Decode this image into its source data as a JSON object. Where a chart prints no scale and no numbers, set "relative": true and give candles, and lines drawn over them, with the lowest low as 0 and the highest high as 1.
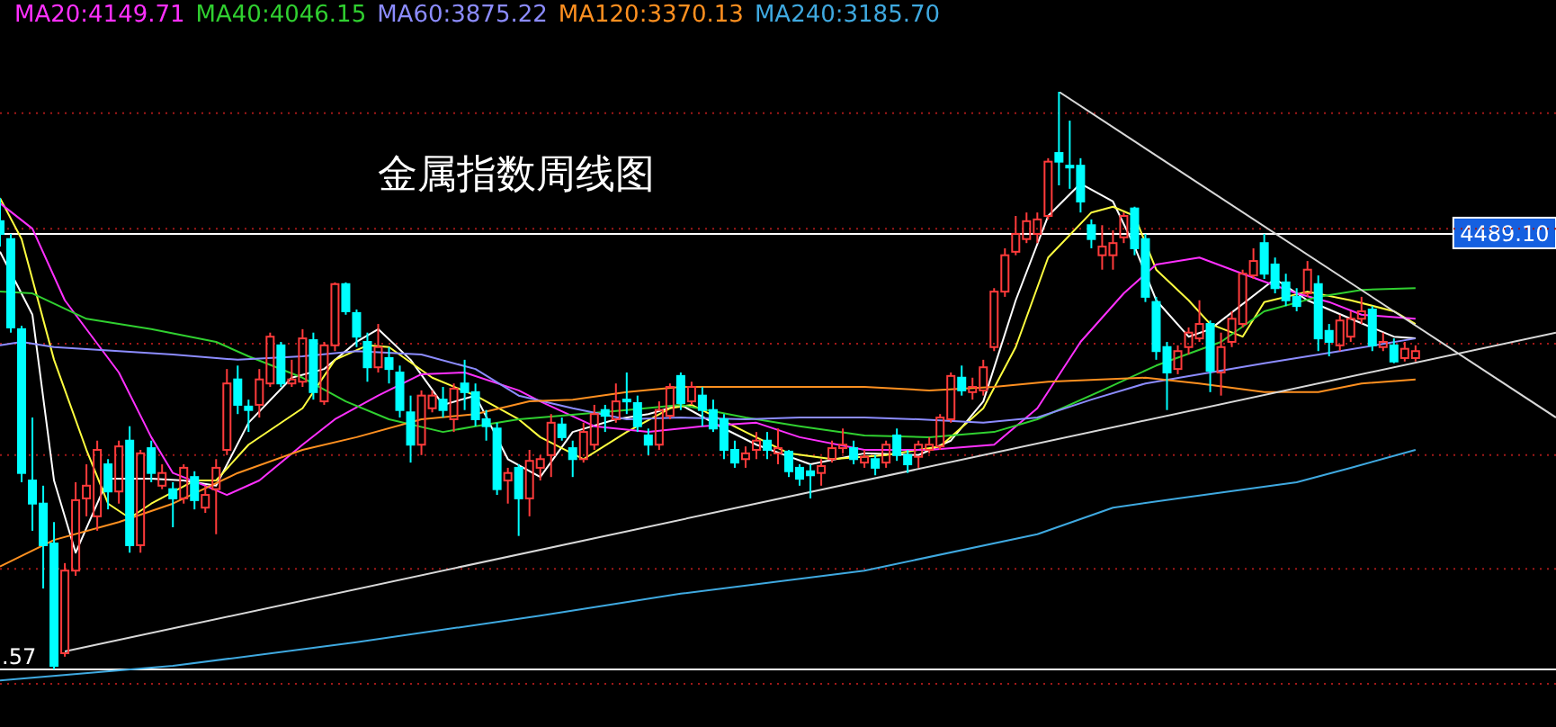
{
  "chart_data": {
    "type": "candlestick",
    "title": "金属指数周线图",
    "relative": true,
    "legend": "top left",
    "categories": [
      null,
      null,
      null,
      null,
      null,
      null,
      null,
      null,
      null,
      null,
      null,
      null,
      null,
      null,
      null,
      null,
      null,
      null,
      null,
      null,
      null,
      null,
      null,
      null,
      null,
      null,
      null,
      null,
      null,
      null,
      null,
      null,
      null,
      null,
      null,
      null,
      null,
      null,
      null,
      null,
      null,
      null,
      null,
      null,
      null,
      null,
      null,
      null,
      null,
      null,
      null,
      null,
      null,
      null,
      null,
      null,
      null,
      null,
      null,
      null,
      null,
      null,
      null,
      null,
      null,
      null,
      null,
      null,
      null,
      null,
      null,
      null,
      null,
      null,
      null,
      null,
      null,
      null,
      null,
      null,
      null,
      null,
      null,
      null,
      null,
      null,
      null,
      null,
      null,
      null,
      null,
      null,
      null,
      null,
      null,
      null,
      null,
      null,
      null,
      null,
      null,
      null,
      null,
      null,
      null,
      null,
      null,
      null,
      null,
      null,
      null,
      null,
      null,
      null,
      null,
      null,
      null,
      null,
      null,
      null,
      null,
      null,
      null,
      null,
      null,
      null,
      null,
      null,
      null,
      null,
      null,
      null,
      null,
      null,
      null,
      null,
      null,
      null,
      null,
      null,
      null,
      null,
      null,
      null,
      null
    ],
    "ohlc": [
      [
        0.776,
        0.816,
        0.732,
        0.754
      ],
      [
        0.745,
        0.754,
        0.583,
        0.592
      ],
      [
        0.589,
        0.595,
        0.324,
        0.34
      ],
      [
        0.327,
        0.436,
        0.24,
        0.287
      ],
      [
        0.287,
        0.318,
        0.14,
        0.215
      ],
      [
        0.218,
        0.255,
        0,
        0.006
      ],
      [
        0.028,
        0.184,
        0.022,
        0.171
      ],
      [
        0.171,
        0.324,
        0.162,
        0.293
      ],
      [
        0.296,
        0.355,
        0.265,
        0.318
      ],
      [
        0.265,
        0.396,
        0.24,
        0.38
      ],
      [
        0.355,
        0.364,
        0.277,
        0.308
      ],
      [
        0.308,
        0.396,
        0.287,
        0.386
      ],
      [
        0.396,
        0.421,
        0.202,
        0.215
      ],
      [
        0.215,
        0.38,
        0.202,
        0.374
      ],
      [
        0.383,
        0.396,
        0.324,
        0.34
      ],
      [
        0.318,
        0.355,
        0.312,
        0.34
      ],
      [
        0.312,
        0.324,
        0.246,
        0.296
      ],
      [
        0.296,
        0.355,
        0.287,
        0.349
      ],
      [
        0.333,
        0.343,
        0.277,
        0.293
      ],
      [
        0.28,
        0.318,
        0.271,
        0.302
      ],
      [
        0.312,
        0.364,
        0.234,
        0.349
      ],
      [
        0.38,
        0.52,
        0.371,
        0.495
      ],
      [
        0.502,
        0.526,
        0.442,
        0.458
      ],
      [
        0.455,
        0.467,
        0.411,
        0.449
      ],
      [
        0.458,
        0.52,
        0.436,
        0.502
      ],
      [
        0.495,
        0.583,
        0.489,
        0.576
      ],
      [
        0.561,
        0.567,
        0.489,
        0.495
      ],
      [
        0.495,
        0.536,
        0.489,
        0.502
      ],
      [
        0.498,
        0.589,
        0.489,
        0.573
      ],
      [
        0.57,
        0.583,
        0.467,
        0.48
      ],
      [
        0.464,
        0.567,
        0.458,
        0.561
      ],
      [
        0.561,
        0.67,
        0.551,
        0.667
      ],
      [
        0.667,
        0.67,
        0.614,
        0.62
      ],
      [
        0.617,
        0.623,
        0.558,
        0.576
      ],
      [
        0.567,
        0.583,
        0.498,
        0.523
      ],
      [
        0.523,
        0.598,
        0.514,
        0.558
      ],
      [
        0.539,
        0.558,
        0.495,
        0.52
      ],
      [
        0.514,
        0.526,
        0.436,
        0.449
      ],
      [
        0.445,
        0.474,
        0.358,
        0.389
      ],
      [
        0.389,
        0.483,
        0.371,
        0.474
      ],
      [
        0.452,
        0.483,
        0.445,
        0.474
      ],
      [
        0.467,
        0.489,
        0.436,
        0.449
      ],
      [
        0.433,
        0.495,
        0.411,
        0.486
      ],
      [
        0.495,
        0.536,
        0.449,
        0.48
      ],
      [
        0.48,
        0.495,
        0.421,
        0.433
      ],
      [
        0.433,
        0.449,
        0.396,
        0.421
      ],
      [
        0.417,
        0.427,
        0.302,
        0.312
      ],
      [
        0.327,
        0.349,
        0.287,
        0.34
      ],
      [
        0.349,
        0.355,
        0.231,
        0.296
      ],
      [
        0.296,
        0.38,
        0.265,
        0.361
      ],
      [
        0.349,
        0.371,
        0.327,
        0.364
      ],
      [
        0.371,
        0.442,
        0.333,
        0.427
      ],
      [
        0.424,
        0.436,
        0.396,
        0.402
      ],
      [
        0.383,
        0.396,
        0.333,
        0.364
      ],
      [
        0.364,
        0.427,
        0.358,
        0.411
      ],
      [
        0.389,
        0.458,
        0.38,
        0.442
      ],
      [
        0.449,
        0.458,
        0.411,
        0.439
      ],
      [
        0.433,
        0.495,
        0.427,
        0.464
      ],
      [
        0.467,
        0.514,
        0.442,
        0.464
      ],
      [
        0.461,
        0.474,
        0.411,
        0.421
      ],
      [
        0.405,
        0.417,
        0.371,
        0.389
      ],
      [
        0.389,
        0.464,
        0.38,
        0.449
      ],
      [
        0.439,
        0.495,
        0.433,
        0.489
      ],
      [
        0.508,
        0.514,
        0.449,
        0.461
      ],
      [
        0.464,
        0.498,
        0.458,
        0.489
      ],
      [
        0.474,
        0.489,
        0.421,
        0.449
      ],
      [
        0.449,
        0.467,
        0.411,
        0.417
      ],
      [
        0.433,
        0.442,
        0.364,
        0.38
      ],
      [
        0.38,
        0.396,
        0.349,
        0.358
      ],
      [
        0.364,
        0.386,
        0.349,
        0.374
      ],
      [
        0.38,
        0.411,
        0.364,
        0.396
      ],
      [
        0.396,
        0.411,
        0.364,
        0.38
      ],
      [
        0.374,
        0.417,
        0.355,
        0.383
      ],
      [
        0.377,
        0.38,
        0.333,
        0.343
      ],
      [
        0.349,
        0.355,
        0.318,
        0.33
      ],
      [
        0.343,
        0.355,
        0.296,
        0.336
      ],
      [
        0.34,
        0.364,
        0.318,
        0.352
      ],
      [
        0.364,
        0.396,
        0.358,
        0.383
      ],
      [
        0.383,
        0.417,
        0.374,
        0.389
      ],
      [
        0.383,
        0.396,
        0.355,
        0.364
      ],
      [
        0.358,
        0.38,
        0.349,
        0.368
      ],
      [
        0.364,
        0.371,
        0.336,
        0.349
      ],
      [
        0.358,
        0.396,
        0.349,
        0.389
      ],
      [
        0.405,
        0.417,
        0.361,
        0.371
      ],
      [
        0.371,
        0.38,
        0.34,
        0.355
      ],
      [
        0.368,
        0.396,
        0.349,
        0.389
      ],
      [
        0.38,
        0.402,
        0.374,
        0.389
      ],
      [
        0.386,
        0.442,
        0.38,
        0.436
      ],
      [
        0.433,
        0.514,
        0.427,
        0.508
      ],
      [
        0.505,
        0.526,
        0.474,
        0.483
      ],
      [
        0.48,
        0.505,
        0.467,
        0.489
      ],
      [
        0.483,
        0.536,
        0.474,
        0.523
      ],
      [
        0.558,
        0.66,
        0.551,
        0.654
      ],
      [
        0.654,
        0.729,
        0.645,
        0.717
      ],
      [
        0.723,
        0.785,
        0.717,
        0.754
      ],
      [
        0.745,
        0.791,
        0.738,
        0.776
      ],
      [
        0.754,
        0.791,
        0.738,
        0.779
      ],
      [
        0.785,
        0.885,
        0.779,
        0.879
      ],
      [
        0.894,
        1,
        0.838,
        0.879
      ],
      [
        0.872,
        0.95,
        0.832,
        0.869
      ],
      [
        0.872,
        0.885,
        0.791,
        0.81
      ],
      [
        0.769,
        0.779,
        0.729,
        0.745
      ],
      [
        0.717,
        0.769,
        0.692,
        0.732
      ],
      [
        0.717,
        0.76,
        0.692,
        0.738
      ],
      [
        0.748,
        0.791,
        0.738,
        0.785
      ],
      [
        0.798,
        0.801,
        0.717,
        0.729
      ],
      [
        0.745,
        0.754,
        0.636,
        0.645
      ],
      [
        0.636,
        0.645,
        0.536,
        0.551
      ],
      [
        0.558,
        0.567,
        0.449,
        0.514
      ],
      [
        0.52,
        0.561,
        0.511,
        0.551
      ],
      [
        0.558,
        0.592,
        0.545,
        0.583
      ],
      [
        0.573,
        0.639,
        0.567,
        0.598
      ],
      [
        0.598,
        0.604,
        0.48,
        0.517
      ],
      [
        0.514,
        0.583,
        0.474,
        0.558
      ],
      [
        0.567,
        0.62,
        0.558,
        0.607
      ],
      [
        0.598,
        0.692,
        0.592,
        0.685
      ],
      [
        0.682,
        0.729,
        0.676,
        0.707
      ],
      [
        0.738,
        0.754,
        0.676,
        0.685
      ],
      [
        0.701,
        0.713,
        0.651,
        0.66
      ],
      [
        0.67,
        0.685,
        0.629,
        0.639
      ],
      [
        0.645,
        0.66,
        0.62,
        0.629
      ],
      [
        0.651,
        0.707,
        0.645,
        0.692
      ],
      [
        0.667,
        0.682,
        0.551,
        0.573
      ],
      [
        0.586,
        0.598,
        0.542,
        0.567
      ],
      [
        0.561,
        0.614,
        0.551,
        0.604
      ],
      [
        0.576,
        0.62,
        0.567,
        0.607
      ],
      [
        0.607,
        0.645,
        0.598,
        0.62
      ],
      [
        0.623,
        0.629,
        0.551,
        0.561
      ],
      [
        0.558,
        0.583,
        0.551,
        0.567
      ],
      [
        0.561,
        0.573,
        0.53,
        0.533
      ],
      [
        0.539,
        0.567,
        0.533,
        0.555
      ],
      [
        0.539,
        0.561,
        0.533,
        0.551
      ],
      null,
      null,
      null,
      null,
      null,
      null,
      null,
      null,
      null,
      null,
      null,
      null,
      null
    ],
    "colors": [
      "#00ffff",
      "#00ffff",
      "#00ffff",
      "#00ffff",
      "#00ffff",
      "#00ffff",
      "#ff3b3b",
      "#ff3b3b",
      "#ff3b3b",
      "#ff3b3b",
      "#00ffff",
      "#ff3b3b",
      "#00ffff",
      "#ff3b3b",
      "#00ffff",
      "#ff3b3b",
      "#00ffff",
      "#ff3b3b",
      "#00ffff",
      "#ff3b3b",
      "#ff3b3b",
      "#ff3b3b",
      "#00ffff",
      "#00ffff",
      "#ff3b3b",
      "#ff3b3b",
      "#00ffff",
      "#ff3b3b",
      "#ff3b3b",
      "#00ffff",
      "#ff3b3b",
      "#ff3b3b",
      "#00ffff",
      "#00ffff",
      "#00ffff",
      "#ff3b3b",
      "#00ffff",
      "#00ffff",
      "#00ffff",
      "#ff3b3b",
      "#ff3b3b",
      "#00ffff",
      "#ff3b3b",
      "#00ffff",
      "#00ffff",
      "#00ffff",
      "#00ffff",
      "#ff3b3b",
      "#00ffff",
      "#ff3b3b",
      "#ff3b3b",
      "#ff3b3b",
      "#00ffff",
      "#00ffff",
      "#ff3b3b",
      "#ff3b3b",
      "#00ffff",
      "#ff3b3b",
      "#00ffff",
      "#00ffff",
      "#00ffff",
      "#ff3b3b",
      "#ff3b3b",
      "#00ffff",
      "#ff3b3b",
      "#00ffff",
      "#00ffff",
      "#00ffff",
      "#00ffff",
      "#ff3b3b",
      "#ff3b3b",
      "#00ffff",
      "#ff3b3b",
      "#00ffff",
      "#00ffff",
      "#00ffff",
      "#ff3b3b",
      "#ff3b3b",
      "#ff3b3b",
      "#00ffff",
      "#ff3b3b",
      "#00ffff",
      "#ff3b3b",
      "#00ffff",
      "#00ffff",
      "#ff3b3b",
      "#ff3b3b",
      "#ff3b3b",
      "#ff3b3b",
      "#00ffff",
      "#ff3b3b",
      "#ff3b3b",
      "#ff3b3b",
      "#ff3b3b",
      "#ff3b3b",
      "#ff3b3b",
      "#ff3b3b",
      "#ff3b3b",
      "#00ffff",
      "#00ffff",
      "#00ffff",
      "#00ffff",
      "#ff3b3b",
      "#ff3b3b",
      "#ff3b3b",
      "#00ffff",
      "#00ffff",
      "#00ffff",
      "#00ffff",
      "#ff3b3b",
      "#ff3b3b",
      "#ff3b3b",
      "#00ffff",
      "#ff3b3b",
      "#ff3b3b",
      "#ff3b3b",
      "#ff3b3b",
      "#00ffff",
      "#00ffff",
      "#00ffff",
      "#00ffff",
      "#ff3b3b",
      "#00ffff",
      "#00ffff",
      "#ff3b3b",
      "#ff3b3b",
      "#ff3b3b",
      "#00ffff",
      "#ff3b3b",
      "#00ffff",
      "#ff3b3b",
      "#ff3b3b",
      null,
      null,
      null,
      null,
      null,
      null,
      null,
      null,
      null,
      null,
      null,
      null,
      null
    ],
    "series": [
      {
        "type": "line",
        "color": "#ffffff",
        "values": [
          0.723,
          null,
          null,
          0.614,
          null,
          0.327,
          null,
          0.202,
          null,
          null,
          0.33,
          null,
          null,
          null,
          0.33,
          null,
          null,
          0.327,
          null,
          null,
          0.318,
          null,
          null,
          0.427,
          null,
          null,
          null,
          0.505,
          null,
          null,
          0.52,
          null,
          null,
          0.567,
          null,
          0.589,
          null,
          null,
          0.536,
          null,
          null,
          0.458,
          null,
          null,
          0.474,
          null,
          null,
          0.364,
          null,
          null,
          0.333,
          null,
          null,
          0.411,
          null,
          null,
          null,
          0.433,
          null,
          null,
          0.442,
          null,
          null,
          0.458,
          null,
          null,
          null,
          0.417,
          null,
          null,
          0.389,
          null,
          null,
          null,
          null,
          0.355,
          null,
          null,
          null,
          null,
          0.374,
          null,
          null,
          null,
          null,
          0.371,
          null,
          null,
          0.396,
          null,
          null,
          0.464,
          null,
          null,
          0.639,
          null,
          null,
          0.785,
          null,
          null,
          0.841,
          null,
          null,
          0.81,
          null,
          0.732,
          null,
          0.639,
          null,
          null,
          0.576,
          null,
          0.589,
          null,
          null,
          null,
          null,
          null,
          0.676,
          null,
          null,
          0.639,
          null,
          null,
          null,
          0.607,
          null,
          null,
          null,
          0.576,
          null,
          0.573,
          null,
          null,
          null,
          null,
          null,
          null,
          null,
          null,
          null,
          null,
          null,
          null,
          null
        ]
      },
      {
        "type": "line",
        "color": "#ffff40",
        "values": [
          0.816,
          null,
          0.745,
          null,
          null,
          0.536,
          null,
          null,
          0.38,
          null,
          0.287,
          null,
          0.262,
          null,
          0.287,
          null,
          null,
          null,
          0.327,
          null,
          0.327,
          null,
          null,
          0.389,
          null,
          null,
          null,
          null,
          0.452,
          null,
          null,
          0.536,
          null,
          null,
          0.561,
          null,
          0.558,
          null,
          null,
          null,
          0.505,
          null,
          null,
          null,
          0.474,
          null,
          null,
          null,
          0.433,
          null,
          0.402,
          null,
          null,
          null,
          0.364,
          null,
          null,
          null,
          0.411,
          null,
          null,
          null,
          0.452,
          null,
          0.458,
          null,
          null,
          null,
          null,
          0.411,
          null,
          null,
          null,
          0.374,
          null,
          null,
          null,
          0.364,
          null,
          null,
          null,
          null,
          0.371,
          null,
          null,
          null,
          null,
          0.386,
          null,
          null,
          null,
          0.452,
          null,
          null,
          0.558,
          null,
          null,
          0.713,
          null,
          null,
          null,
          0.791,
          null,
          0.801,
          null,
          0.785,
          null,
          0.692,
          null,
          null,
          0.639,
          null,
          0.598,
          null,
          null,
          0.576,
          null,
          0.636,
          null,
          null,
          null,
          0.654,
          null,
          null,
          null,
          0.639,
          null,
          null,
          null,
          0.62,
          null,
          0.598,
          null,
          null,
          null,
          null,
          null,
          null,
          null,
          null,
          null,
          null,
          null,
          null,
          null
        ]
      },
      {
        "type": "line",
        "name": "MA20:4149.71",
        "color": "#ff30ff",
        "values": [
          0.807,
          null,
          null,
          0.763,
          null,
          null,
          0.639,
          null,
          null,
          null,
          null,
          0.514,
          null,
          null,
          0.402,
          null,
          0.34,
          null,
          null,
          0.318,
          null,
          0.302,
          null,
          null,
          0.327,
          null,
          null,
          null,
          0.389,
          null,
          null,
          0.433,
          null,
          null,
          null,
          0.474,
          null,
          null,
          null,
          0.511,
          null,
          null,
          null,
          0.514,
          null,
          null,
          null,
          null,
          0.483,
          null,
          0.464,
          null,
          null,
          null,
          null,
          0.421,
          null,
          null,
          null,
          null,
          0.411,
          null,
          null,
          null,
          null,
          0.421,
          null,
          null,
          null,
          null,
          0.427,
          null,
          null,
          null,
          0.402,
          null,
          null,
          null,
          null,
          null,
          0.38,
          null,
          null,
          null,
          null,
          null,
          0.38,
          null,
          null,
          null,
          null,
          null,
          0.389,
          null,
          null,
          null,
          0.452,
          null,
          null,
          null,
          0.567,
          null,
          null,
          null,
          0.651,
          null,
          null,
          0.701,
          null,
          null,
          null,
          0.713,
          null,
          null,
          null,
          0.685,
          null,
          null,
          null,
          null,
          0.651,
          null,
          null,
          0.636,
          null,
          null,
          0.614,
          null,
          null,
          null,
          null,
          0.607,
          null,
          null,
          null,
          null,
          null,
          null,
          null,
          null,
          null,
          null,
          null,
          null,
          null
        ]
      },
      {
        "type": "line",
        "name": "MA40:4046.15",
        "color": "#30d030",
        "values": [
          0.654,
          null,
          null,
          0.651,
          null,
          null,
          null,
          null,
          0.607,
          null,
          null,
          null,
          null,
          null,
          0.589,
          null,
          null,
          null,
          null,
          null,
          0.567,
          null,
          null,
          0.542,
          null,
          null,
          null,
          null,
          0.505,
          null,
          null,
          null,
          0.464,
          null,
          null,
          null,
          0.433,
          null,
          null,
          null,
          null,
          0.411,
          null,
          null,
          0.421,
          null,
          null,
          null,
          0.433,
          null,
          0.436,
          null,
          null,
          null,
          null,
          null,
          null,
          null,
          0.449,
          null,
          null,
          null,
          null,
          0.458,
          null,
          null,
          null,
          null,
          null,
          0.436,
          null,
          null,
          null,
          null,
          0.421,
          null,
          null,
          null,
          null,
          null,
          0.405,
          null,
          null,
          null,
          null,
          null,
          0.402,
          null,
          null,
          null,
          null,
          null,
          0.411,
          null,
          null,
          null,
          0.433,
          null,
          null,
          null,
          null,
          null,
          0.483,
          null,
          null,
          null,
          null,
          0.526,
          null,
          null,
          null,
          null,
          null,
          0.567,
          null,
          null,
          null,
          0.62,
          null,
          null,
          null,
          null,
          0.645,
          null,
          null,
          null,
          0.657,
          null,
          null,
          null,
          null,
          0.66,
          null,
          null,
          null,
          null,
          null,
          null,
          null,
          null,
          null,
          null,
          null,
          null,
          null
        ]
      },
      {
        "type": "line",
        "name": "MA60:3875.22",
        "color": "#8c8cff",
        "values": [
          0.561,
          null,
          0.567,
          null,
          null,
          0.558,
          null,
          null,
          null,
          null,
          null,
          0.551,
          null,
          null,
          null,
          null,
          0.545,
          null,
          null,
          null,
          null,
          null,
          0.536,
          null,
          null,
          null,
          null,
          null,
          0.542,
          null,
          null,
          null,
          null,
          0.551,
          null,
          null,
          null,
          null,
          null,
          0.545,
          null,
          null,
          null,
          null,
          0.52,
          null,
          null,
          null,
          0.474,
          null,
          null,
          null,
          null,
          0.452,
          null,
          null,
          null,
          null,
          0.433,
          null,
          null,
          null,
          null,
          0.436,
          null,
          null,
          null,
          null,
          null,
          0.433,
          null,
          null,
          null,
          null,
          0.436,
          null,
          null,
          null,
          null,
          null,
          0.436,
          null,
          null,
          null,
          null,
          0.433,
          null,
          null,
          null,
          null,
          null,
          0.427,
          null,
          null,
          null,
          null,
          0.436,
          null,
          null,
          null,
          null,
          0.467,
          null,
          null,
          null,
          null,
          0.495,
          null,
          null,
          null,
          null,
          0.511,
          null,
          null,
          null,
          null,
          null,
          0.53,
          null,
          null,
          null,
          null,
          null,
          null,
          0.551,
          null,
          null,
          null,
          null,
          null,
          null,
          0.573,
          null,
          null,
          null,
          null,
          null,
          null,
          null,
          null,
          null,
          null,
          null,
          null,
          null
        ]
      },
      {
        "type": "line",
        "name": "MA120:3370.13",
        "color": "#ff9020",
        "values": [
          0.178,
          null,
          null,
          null,
          null,
          0.224,
          null,
          null,
          null,
          null,
          null,
          0.255,
          null,
          null,
          null,
          null,
          0.287,
          null,
          null,
          null,
          null,
          null,
          0.34,
          null,
          null,
          null,
          null,
          null,
          0.38,
          null,
          null,
          null,
          null,
          0.402,
          null,
          null,
          null,
          null,
          null,
          0.433,
          null,
          null,
          null,
          null,
          0.442,
          null,
          null,
          null,
          null,
          0.464,
          null,
          null,
          null,
          0.467,
          null,
          null,
          null,
          null,
          0.48,
          null,
          null,
          null,
          null,
          0.489,
          null,
          null,
          null,
          null,
          null,
          0.489,
          null,
          null,
          null,
          null,
          null,
          null,
          null,
          null,
          null,
          null,
          0.489,
          null,
          null,
          null,
          null,
          null,
          0.483,
          null,
          null,
          null,
          null,
          null,
          0.489,
          null,
          null,
          null,
          null,
          0.498,
          null,
          null,
          null,
          null,
          null,
          null,
          null,
          null,
          0.505,
          null,
          null,
          null,
          null,
          0.495,
          null,
          null,
          null,
          null,
          null,
          0.48,
          null,
          null,
          null,
          null,
          0.48,
          null,
          null,
          null,
          0.495,
          null,
          null,
          null,
          null,
          0.502,
          null,
          null,
          null,
          null,
          null,
          null,
          null,
          null,
          null,
          null,
          null,
          null,
          null
        ]
      },
      {
        "type": "line",
        "name": "MA240:3185.70",
        "color": "#3fa9e0",
        "values": [
          -0.019,
          null,
          null,
          null,
          null,
          null,
          null,
          null,
          null,
          null,
          null,
          null,
          null,
          null,
          null,
          null,
          0.006,
          null,
          null,
          null,
          null,
          null,
          null,
          null,
          null,
          null,
          null,
          null,
          null,
          null,
          null,
          null,
          null,
          0.047,
          null,
          null,
          null,
          null,
          null,
          null,
          null,
          null,
          null,
          null,
          null,
          null,
          null,
          null,
          null,
          null,
          0.093,
          null,
          null,
          null,
          null,
          null,
          null,
          null,
          null,
          null,
          null,
          null,
          null,
          0.131,
          null,
          null,
          null,
          null,
          null,
          null,
          null,
          null,
          null,
          null,
          null,
          null,
          null,
          null,
          null,
          null,
          0.171,
          null,
          null,
          null,
          null,
          null,
          null,
          null,
          null,
          null,
          null,
          null,
          null,
          null,
          null,
          null,
          0.234,
          null,
          null,
          null,
          null,
          null,
          null,
          0.28,
          null,
          null,
          null,
          null,
          null,
          0.296,
          null,
          null,
          null,
          null,
          null,
          null,
          null,
          null,
          null,
          null,
          0.324,
          null,
          null,
          null,
          null,
          0.349,
          null,
          null,
          null,
          null,
          null,
          0.38,
          null,
          null,
          null,
          null,
          null,
          null,
          null,
          null,
          null,
          null,
          null,
          null,
          null
        ]
      },
      {
        "type": "line",
        "color": "#d8d8d8",
        "values": [
          null,
          null,
          null,
          null,
          null,
          null,
          0.031,
          null,
          null,
          null,
          null,
          null,
          null,
          null,
          null,
          null,
          null,
          null,
          null,
          null,
          null,
          null,
          null,
          null,
          null,
          null,
          null,
          null,
          null,
          null,
          null,
          null,
          null,
          null,
          null,
          null,
          null,
          null,
          null,
          null,
          null,
          null,
          null,
          null,
          null,
          null,
          null,
          null,
          null,
          null,
          null,
          null,
          null,
          null,
          null,
          null,
          null,
          null,
          null,
          null,
          null,
          null,
          null,
          null,
          null,
          null,
          null,
          null,
          null,
          null,
          null,
          null,
          null,
          null,
          null,
          null,
          null,
          null,
          null,
          null,
          null,
          null,
          null,
          null,
          null,
          null,
          null,
          null,
          null,
          null,
          null,
          null,
          null,
          null,
          null,
          null,
          null,
          null,
          null,
          null,
          null,
          null,
          null,
          null,
          null,
          null,
          null,
          null,
          null,
          null,
          null,
          null,
          null,
          null,
          null,
          null,
          null,
          null,
          null,
          null,
          null,
          null,
          null,
          null,
          null,
          null,
          null,
          null,
          null,
          null,
          null,
          null,
          null,
          null,
          null,
          null,
          null,
          null,
          null,
          null,
          null,
          null,
          null,
          null,
          0.583
        ]
      },
      {
        "type": "line",
        "color": "#d8d8d8",
        "values": [
          null,
          null,
          null,
          null,
          null,
          null,
          null,
          null,
          null,
          null,
          null,
          null,
          null,
          null,
          null,
          null,
          null,
          null,
          null,
          null,
          null,
          null,
          null,
          null,
          null,
          null,
          null,
          null,
          null,
          null,
          null,
          null,
          null,
          null,
          null,
          null,
          null,
          null,
          null,
          null,
          null,
          null,
          null,
          null,
          null,
          null,
          null,
          null,
          null,
          null,
          null,
          null,
          null,
          null,
          null,
          null,
          null,
          null,
          null,
          null,
          null,
          null,
          null,
          null,
          null,
          null,
          null,
          null,
          null,
          null,
          null,
          null,
          null,
          null,
          null,
          null,
          null,
          null,
          null,
          null,
          null,
          null,
          null,
          null,
          null,
          null,
          null,
          null,
          null,
          null,
          null,
          null,
          null,
          null,
          null,
          null,
          null,
          null,
          1,
          null,
          null,
          null,
          null,
          null,
          null,
          null,
          null,
          null,
          null,
          null,
          null,
          null,
          null,
          null,
          null,
          null,
          null,
          null,
          null,
          null,
          null,
          null,
          null,
          null,
          null,
          null,
          null,
          null,
          null,
          null,
          null,
          null,
          null,
          null,
          null,
          null,
          null,
          null,
          null,
          null,
          null,
          null,
          null,
          null,
          0.436
        ]
      }
    ],
    "annotations": [
      "4489.10",
      ".57"
    ],
    "ref_lines": [
      {
        "axis": "y",
        "value": 0.754,
        "color": "#ffffff"
      },
      {
        "axis": "y",
        "value": 0,
        "color": "#ffffff"
      },
      {
        "axis": "y",
        "value": 0.963,
        "color": "#a01818",
        "line_style": "dotted"
      },
      {
        "axis": "y",
        "value": 0.763,
        "color": "#a01818",
        "line_style": "dotted"
      },
      {
        "axis": "y",
        "value": 0.564,
        "color": "#a01818",
        "line_style": "dotted"
      },
      {
        "axis": "y",
        "value": 0.371,
        "color": "#a01818",
        "line_style": "dotted"
      },
      {
        "axis": "y",
        "value": 0.174,
        "color": "#a01818",
        "line_style": "dotted"
      },
      {
        "axis": "y",
        "value": -0.025,
        "color": "#a01818",
        "line_style": "dotted"
      }
    ]
  }
}
